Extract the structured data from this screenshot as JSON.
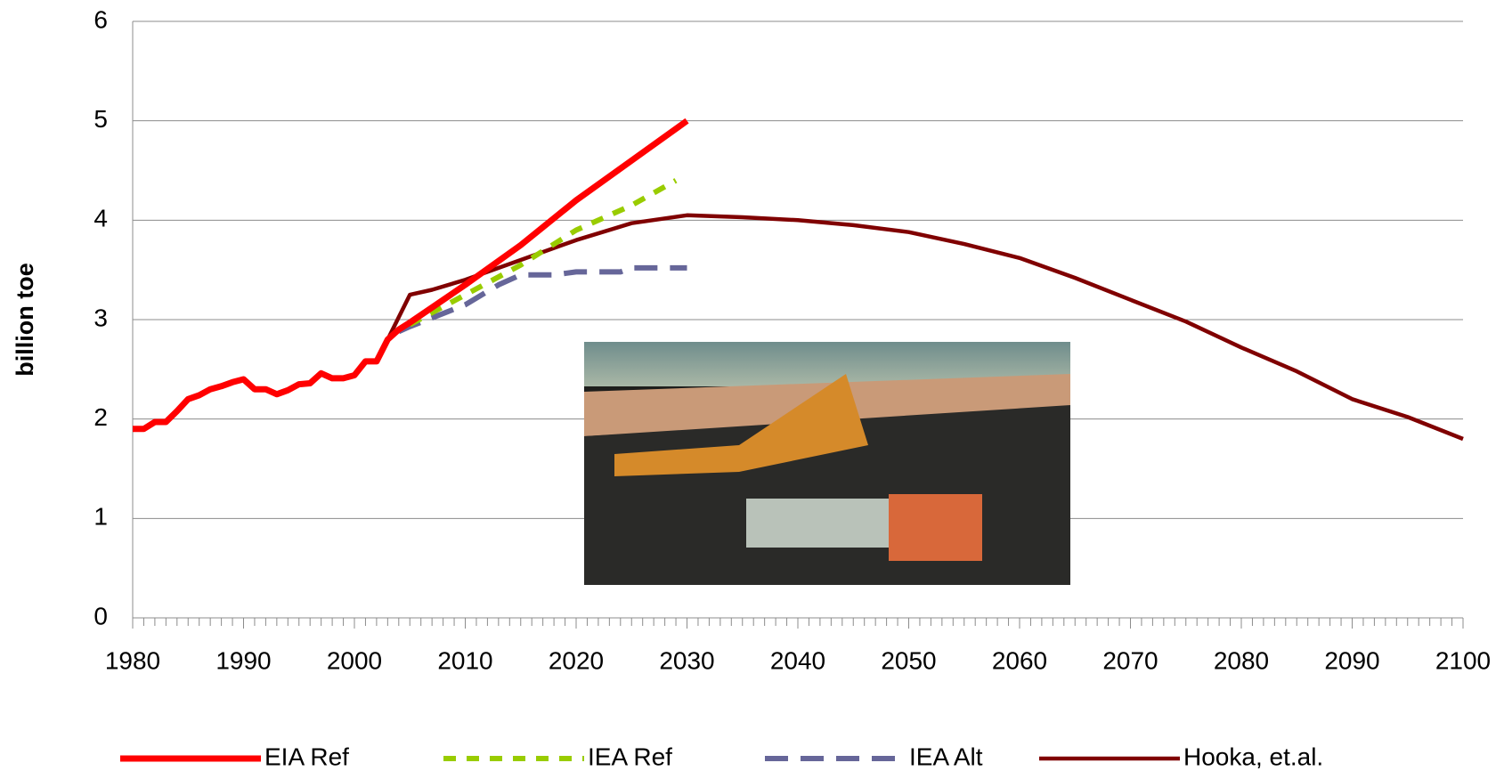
{
  "chart_data": {
    "type": "line",
    "y_label": "billion toe",
    "xlim": [
      1980,
      2100
    ],
    "xticks": [
      1980,
      1990,
      2000,
      2010,
      2020,
      2030,
      2040,
      2050,
      2060,
      2070,
      2080,
      2090,
      2100
    ],
    "ylim": [
      0,
      6
    ],
    "yticks": [
      0,
      1,
      2,
      3,
      4,
      5,
      6
    ],
    "grid": true,
    "legend": "bottom",
    "series": [
      {
        "name": "EIA Ref",
        "color": "#ff0000",
        "style": "solid",
        "x": [
          1980,
          1981,
          1982,
          1983,
          1984,
          1985,
          1986,
          1987,
          1988,
          1989,
          1990,
          1991,
          1992,
          1993,
          1994,
          1995,
          1996,
          1997,
          1998,
          1999,
          2000,
          2001,
          2002,
          2003,
          2004,
          2005,
          2010,
          2015,
          2020,
          2025,
          2030
        ],
        "values": [
          1.9,
          1.9,
          1.97,
          1.97,
          2.08,
          2.2,
          2.24,
          2.3,
          2.33,
          2.37,
          2.4,
          2.3,
          2.3,
          2.25,
          2.29,
          2.35,
          2.36,
          2.46,
          2.41,
          2.41,
          2.44,
          2.58,
          2.58,
          2.8,
          2.9,
          2.97,
          3.35,
          3.75,
          4.2,
          4.6,
          5.0
        ]
      },
      {
        "name": "IEA Ref",
        "color": "#99cc00",
        "style": "dash",
        "x": [
          2005,
          2010,
          2015,
          2020,
          2025,
          2029
        ],
        "values": [
          2.95,
          3.25,
          3.55,
          3.9,
          4.15,
          4.4
        ]
      },
      {
        "name": "IEA Alt",
        "color": "#666699",
        "style": "longdash",
        "x": [
          2004,
          2005,
          2010,
          2013,
          2015,
          2018,
          2020,
          2024,
          2025,
          2030
        ],
        "values": [
          2.88,
          2.93,
          3.15,
          3.35,
          3.45,
          3.45,
          3.48,
          3.48,
          3.52,
          3.52
        ]
      },
      {
        "name": "Hooka, et.al.",
        "color": "#800000",
        "style": "solid",
        "x": [
          1980,
          1981,
          1982,
          1983,
          1984,
          1985,
          1986,
          1987,
          1988,
          1989,
          1990,
          1991,
          1992,
          1993,
          1994,
          1995,
          1996,
          1997,
          1998,
          1999,
          2000,
          2001,
          2002,
          2003,
          2005,
          2007,
          2010,
          2015,
          2020,
          2025,
          2030,
          2035,
          2040,
          2045,
          2050,
          2055,
          2060,
          2065,
          2070,
          2075,
          2080,
          2085,
          2090,
          2095,
          2100
        ],
        "values": [
          1.9,
          1.9,
          1.97,
          1.97,
          2.08,
          2.2,
          2.24,
          2.3,
          2.33,
          2.37,
          2.4,
          2.3,
          2.3,
          2.25,
          2.29,
          2.35,
          2.36,
          2.46,
          2.41,
          2.41,
          2.44,
          2.58,
          2.58,
          2.8,
          3.25,
          3.3,
          3.4,
          3.6,
          3.8,
          3.97,
          4.05,
          4.03,
          4.0,
          3.95,
          3.88,
          3.76,
          3.62,
          3.42,
          3.2,
          2.98,
          2.72,
          2.48,
          2.2,
          2.02,
          1.8
        ]
      }
    ]
  }
}
